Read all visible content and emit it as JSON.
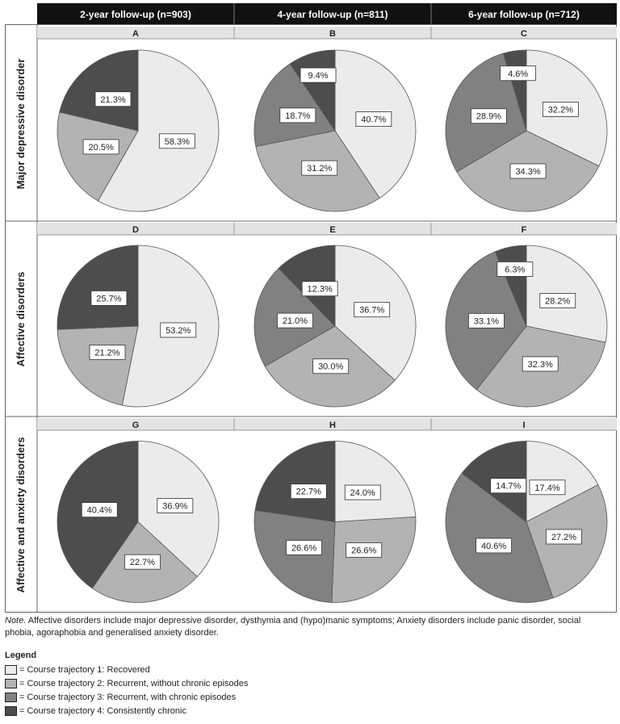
{
  "columns": [
    "2-year follow-up (n=903)",
    "4-year follow-up (n=811)",
    "6-year follow-up (n=712)"
  ],
  "rows": [
    "Major depressive disorder",
    "Affective disorders",
    "Affective and anxiety disorders"
  ],
  "colors": [
    "#ebebeb",
    "#b3b3b3",
    "#818181",
    "#4d4d4d"
  ],
  "chart_data": [
    {
      "type": "pie",
      "panel": "A",
      "categories": [
        "Course trajectory 1: Recovered",
        "Course trajectory 2: Recurrent, without chronic episodes",
        "Course trajectory 3: Recurrent, with chronic episodes",
        "Course trajectory 4: Consistently chronic"
      ],
      "values": [
        58.3,
        20.5,
        0,
        21.3
      ],
      "labels": [
        "58.3%",
        "20.5%",
        "",
        "21.3%"
      ]
    },
    {
      "type": "pie",
      "panel": "B",
      "categories": [
        "Course trajectory 1: Recovered",
        "Course trajectory 2: Recurrent, without chronic episodes",
        "Course trajectory 3: Recurrent, with chronic episodes",
        "Course trajectory 4: Consistently chronic"
      ],
      "values": [
        40.7,
        31.2,
        18.7,
        9.4
      ],
      "labels": [
        "40.7%",
        "31.2%",
        "18.7%",
        "9.4%"
      ]
    },
    {
      "type": "pie",
      "panel": "C",
      "categories": [
        "Course trajectory 1: Recovered",
        "Course trajectory 2: Recurrent, without chronic episodes",
        "Course trajectory 3: Recurrent, with chronic episodes",
        "Course trajectory 4: Consistently chronic"
      ],
      "values": [
        32.2,
        34.3,
        28.9,
        4.6
      ],
      "labels": [
        "32.2%",
        "34.3%",
        "28.9%",
        "4.6%"
      ]
    },
    {
      "type": "pie",
      "panel": "D",
      "categories": [
        "Course trajectory 1: Recovered",
        "Course trajectory 2: Recurrent, without chronic episodes",
        "Course trajectory 3: Recurrent, with chronic episodes",
        "Course trajectory 4: Consistently chronic"
      ],
      "values": [
        53.2,
        21.2,
        0,
        25.7
      ],
      "labels": [
        "53.2%",
        "21.2%",
        "",
        "25.7%"
      ]
    },
    {
      "type": "pie",
      "panel": "E",
      "categories": [
        "Course trajectory 1: Recovered",
        "Course trajectory 2: Recurrent, without chronic episodes",
        "Course trajectory 3: Recurrent, with chronic episodes",
        "Course trajectory 4: Consistently chronic"
      ],
      "values": [
        36.7,
        30.0,
        21.0,
        12.3
      ],
      "labels": [
        "36.7%",
        "30.0%",
        "21.0%",
        "12.3%"
      ]
    },
    {
      "type": "pie",
      "panel": "F",
      "categories": [
        "Course trajectory 1: Recovered",
        "Course trajectory 2: Recurrent, without chronic episodes",
        "Course trajectory 3: Recurrent, with chronic episodes",
        "Course trajectory 4: Consistently chronic"
      ],
      "values": [
        28.2,
        32.3,
        33.1,
        6.3
      ],
      "labels": [
        "28.2%",
        "32.3%",
        "33.1%",
        "6.3%"
      ]
    },
    {
      "type": "pie",
      "panel": "G",
      "categories": [
        "Course trajectory 1: Recovered",
        "Course trajectory 2: Recurrent, without chronic episodes",
        "Course trajectory 3: Recurrent, with chronic episodes",
        "Course trajectory 4: Consistently chronic"
      ],
      "values": [
        36.9,
        22.7,
        0,
        40.4
      ],
      "labels": [
        "36.9%",
        "22.7%",
        "",
        "40.4%"
      ]
    },
    {
      "type": "pie",
      "panel": "H",
      "categories": [
        "Course trajectory 1: Recovered",
        "Course trajectory 2: Recurrent, without chronic episodes",
        "Course trajectory 3: Recurrent, with chronic episodes",
        "Course trajectory 4: Consistently chronic"
      ],
      "values": [
        24.0,
        26.6,
        26.6,
        22.7
      ],
      "labels": [
        "24.0%",
        "26.6%",
        "26.6%",
        "22.7%"
      ]
    },
    {
      "type": "pie",
      "panel": "I",
      "categories": [
        "Course trajectory 1: Recovered",
        "Course trajectory 2: Recurrent, without chronic episodes",
        "Course trajectory 3: Recurrent, with chronic episodes",
        "Course trajectory 4: Consistently chronic"
      ],
      "values": [
        17.4,
        27.2,
        40.6,
        14.7
      ],
      "labels": [
        "17.4%",
        "27.2%",
        "40.6%",
        "14.7%"
      ]
    }
  ],
  "note": {
    "prefix": "Note.",
    "text": " Affective disorders include major depressive disorder, dysthymia and (hypo)manic symptoms; Anxiety disorders include panic disorder, social phobia, agoraphobia and generalised anxiety disorder."
  },
  "legend": {
    "title": "Legend",
    "items": [
      "= Course trajectory 1: Recovered",
      "= Course trajectory 2: Recurrent, without chronic episodes",
      "= Course trajectory 3: Recurrent, with chronic episodes",
      "= Course trajectory 4: Consistently chronic"
    ]
  }
}
